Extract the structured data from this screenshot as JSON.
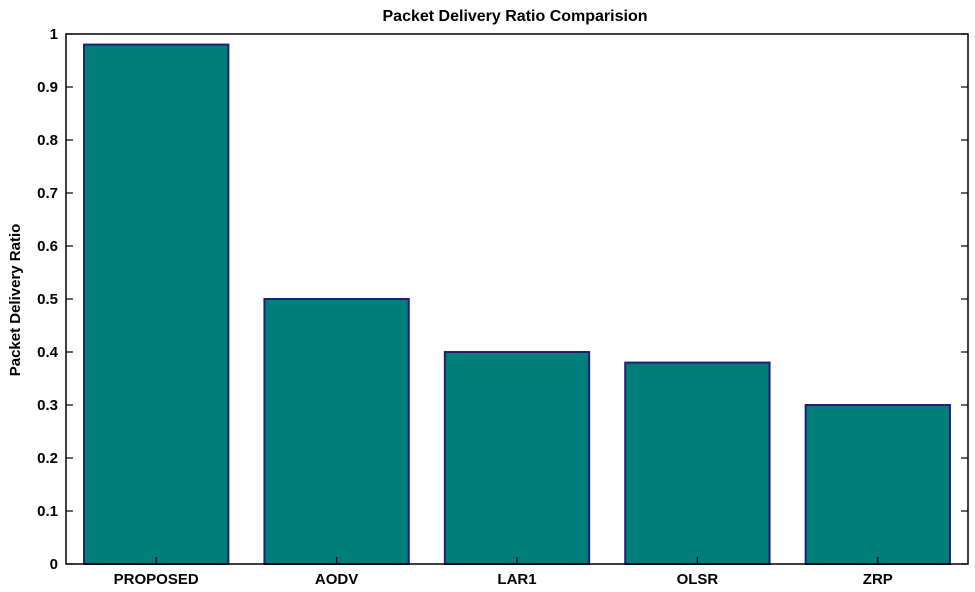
{
  "chart_data": {
    "type": "bar",
    "title": "Packet Delivery Ratio Comparision",
    "xlabel": "",
    "ylabel": "Packet Delivery Ratio",
    "categories": [
      "PROPOSED",
      "AODV",
      "LAR1",
      "OLSR",
      "ZRP"
    ],
    "values": [
      0.98,
      0.5,
      0.4,
      0.38,
      0.3
    ],
    "ylim": [
      0,
      1
    ],
    "yticks": [
      "0",
      "0.1",
      "0.2",
      "0.3",
      "0.4",
      "0.5",
      "0.6",
      "0.7",
      "0.8",
      "0.9",
      "1"
    ],
    "grid": false,
    "bar_color": "#007f7a",
    "bar_edge_color": "#1f1f7a"
  }
}
